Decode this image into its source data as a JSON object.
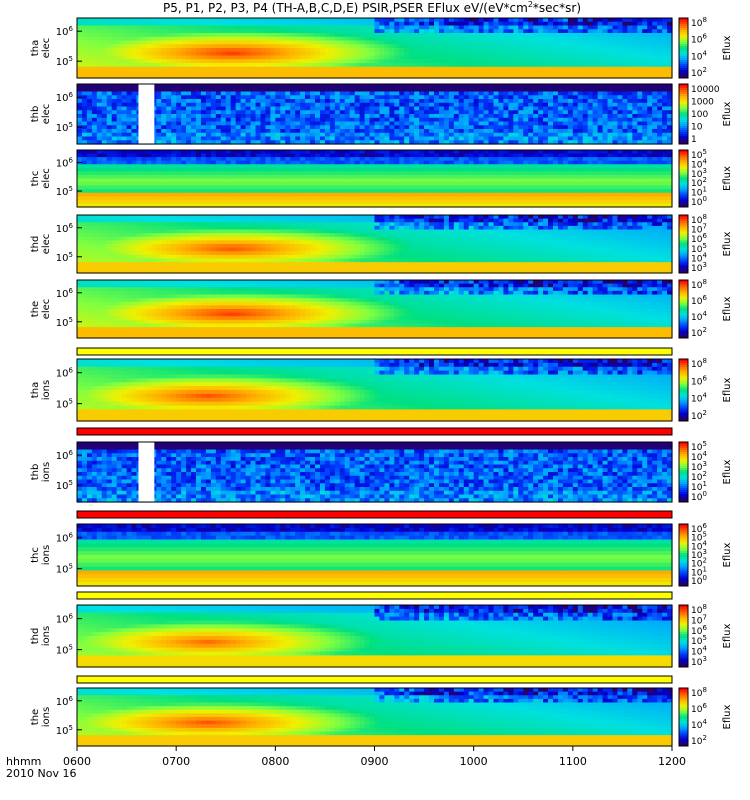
{
  "title_parts": {
    "pre": "P5, P1, P2, P3, P4 (TH-A,B,C,D,E) PSIR,PSER EFlux eV/(eV*cm",
    "sup": "2",
    "post": "*sec*sr)"
  },
  "time_axis": {
    "label": "hhmm",
    "date": "2010 Nov 16",
    "ticks": [
      "0600",
      "0700",
      "0800",
      "0900",
      "1000",
      "1100",
      "1200"
    ],
    "range_hours": [
      6,
      12
    ]
  },
  "colorbar_unit": "Eflux",
  "colors": {
    "spectrum": [
      "#2a0060",
      "#0000d0",
      "#0040ff",
      "#00a0ff",
      "#00e0e0",
      "#00e080",
      "#80ff40",
      "#f0f000",
      "#ffb000",
      "#ff6000",
      "#ff0000"
    ],
    "flag_red": "#ff0000",
    "flag_yellow": "#ffff00",
    "gap_white": "#ffffff"
  },
  "chart_data": {
    "type": "heatmap",
    "x_unit": "UT hours",
    "y_unit": "eV",
    "y_scale": "log",
    "panels": [
      {
        "id": "tha-elec",
        "ylabel_top": "tha",
        "ylabel_bottom": "elec",
        "y_ticks": [
          {
            "base": "10",
            "exp": "6"
          },
          {
            "base": "10",
            "exp": "5"
          }
        ],
        "cbar_ticks": [
          {
            "base": "10",
            "exp": "8"
          },
          {
            "base": "10",
            "exp": "6"
          },
          {
            "base": "10",
            "exp": "4"
          },
          {
            "base": "10",
            "exp": "2"
          }
        ],
        "profile": "elec",
        "intensity": 1.0,
        "data_gap": null
      },
      {
        "id": "thb-elec",
        "ylabel_top": "thb",
        "ylabel_bottom": "elec",
        "y_ticks": [
          {
            "base": "10",
            "exp": "6"
          },
          {
            "base": "10",
            "exp": "5"
          }
        ],
        "cbar_ticks": [
          {
            "base": "10000",
            "exp": ""
          },
          {
            "base": "1000",
            "exp": ""
          },
          {
            "base": "100",
            "exp": ""
          },
          {
            "base": "10",
            "exp": ""
          },
          {
            "base": "1",
            "exp": ""
          }
        ],
        "profile": "noise",
        "intensity": 0.3,
        "data_gap": [
          6.62,
          6.78
        ]
      },
      {
        "id": "thc-elec",
        "ylabel_top": "thc",
        "ylabel_bottom": "elec",
        "y_ticks": [
          {
            "base": "10",
            "exp": "6"
          },
          {
            "base": "10",
            "exp": "5"
          }
        ],
        "cbar_ticks": [
          {
            "base": "10",
            "exp": "5"
          },
          {
            "base": "10",
            "exp": "4"
          },
          {
            "base": "10",
            "exp": "3"
          },
          {
            "base": "10",
            "exp": "2"
          },
          {
            "base": "10",
            "exp": "1"
          },
          {
            "base": "10",
            "exp": "0"
          }
        ],
        "profile": "flat",
        "intensity": 0.5,
        "data_gap": null
      },
      {
        "id": "thd-elec",
        "ylabel_top": "thd",
        "ylabel_bottom": "elec",
        "y_ticks": [
          {
            "base": "10",
            "exp": "6"
          },
          {
            "base": "10",
            "exp": "5"
          }
        ],
        "cbar_ticks": [
          {
            "base": "10",
            "exp": "8"
          },
          {
            "base": "10",
            "exp": "7"
          },
          {
            "base": "10",
            "exp": "6"
          },
          {
            "base": "10",
            "exp": "5"
          },
          {
            "base": "10",
            "exp": "4"
          },
          {
            "base": "10",
            "exp": "3"
          }
        ],
        "profile": "elec",
        "intensity": 0.9,
        "data_gap": null
      },
      {
        "id": "the-elec",
        "ylabel_top": "the",
        "ylabel_bottom": "elec",
        "y_ticks": [
          {
            "base": "10",
            "exp": "6"
          },
          {
            "base": "10",
            "exp": "5"
          }
        ],
        "cbar_ticks": [
          {
            "base": "10",
            "exp": "8"
          },
          {
            "base": "10",
            "exp": "6"
          },
          {
            "base": "10",
            "exp": "4"
          },
          {
            "base": "10",
            "exp": "2"
          }
        ],
        "profile": "elec",
        "intensity": 1.0,
        "data_gap": null,
        "flag_bar": "yellow"
      },
      {
        "id": "tha-ions",
        "ylabel_top": "tha",
        "ylabel_bottom": "ions",
        "y_ticks": [
          {
            "base": "10",
            "exp": "6"
          },
          {
            "base": "10",
            "exp": "5"
          }
        ],
        "cbar_ticks": [
          {
            "base": "10",
            "exp": "8"
          },
          {
            "base": "10",
            "exp": "6"
          },
          {
            "base": "10",
            "exp": "4"
          },
          {
            "base": "10",
            "exp": "2"
          }
        ],
        "profile": "ions",
        "intensity": 0.9,
        "data_gap": null,
        "flag_bar": "red"
      },
      {
        "id": "thb-ions",
        "ylabel_top": "thb",
        "ylabel_bottom": "ions",
        "y_ticks": [
          {
            "base": "10",
            "exp": "6"
          },
          {
            "base": "10",
            "exp": "5"
          }
        ],
        "cbar_ticks": [
          {
            "base": "10",
            "exp": "5"
          },
          {
            "base": "10",
            "exp": "4"
          },
          {
            "base": "10",
            "exp": "3"
          },
          {
            "base": "10",
            "exp": "2"
          },
          {
            "base": "10",
            "exp": "1"
          },
          {
            "base": "10",
            "exp": "0"
          }
        ],
        "profile": "noise",
        "intensity": 0.3,
        "data_gap": [
          6.62,
          6.78
        ],
        "flag_bar": "red"
      },
      {
        "id": "thc-ions",
        "ylabel_top": "thc",
        "ylabel_bottom": "ions",
        "y_ticks": [
          {
            "base": "10",
            "exp": "6"
          },
          {
            "base": "10",
            "exp": "5"
          }
        ],
        "cbar_ticks": [
          {
            "base": "10",
            "exp": "6"
          },
          {
            "base": "10",
            "exp": "5"
          },
          {
            "base": "10",
            "exp": "4"
          },
          {
            "base": "10",
            "exp": "3"
          },
          {
            "base": "10",
            "exp": "2"
          },
          {
            "base": "10",
            "exp": "1"
          },
          {
            "base": "10",
            "exp": "0"
          }
        ],
        "profile": "flat",
        "intensity": 0.5,
        "data_gap": null,
        "flag_bar": "yellow"
      },
      {
        "id": "thd-ions",
        "ylabel_top": "thd",
        "ylabel_bottom": "ions",
        "y_ticks": [
          {
            "base": "10",
            "exp": "6"
          },
          {
            "base": "10",
            "exp": "5"
          }
        ],
        "cbar_ticks": [
          {
            "base": "10",
            "exp": "8"
          },
          {
            "base": "10",
            "exp": "7"
          },
          {
            "base": "10",
            "exp": "6"
          },
          {
            "base": "10",
            "exp": "5"
          },
          {
            "base": "10",
            "exp": "4"
          },
          {
            "base": "10",
            "exp": "3"
          }
        ],
        "profile": "ions",
        "intensity": 0.8,
        "data_gap": null,
        "flag_bar": "yellow"
      },
      {
        "id": "the-ions",
        "ylabel_top": "the",
        "ylabel_bottom": "ions",
        "y_ticks": [
          {
            "base": "10",
            "exp": "6"
          },
          {
            "base": "10",
            "exp": "5"
          }
        ],
        "cbar_ticks": [
          {
            "base": "10",
            "exp": "8"
          },
          {
            "base": "10",
            "exp": "6"
          },
          {
            "base": "10",
            "exp": "4"
          },
          {
            "base": "10",
            "exp": "2"
          }
        ],
        "profile": "ions",
        "intensity": 0.9,
        "data_gap": null
      }
    ]
  }
}
